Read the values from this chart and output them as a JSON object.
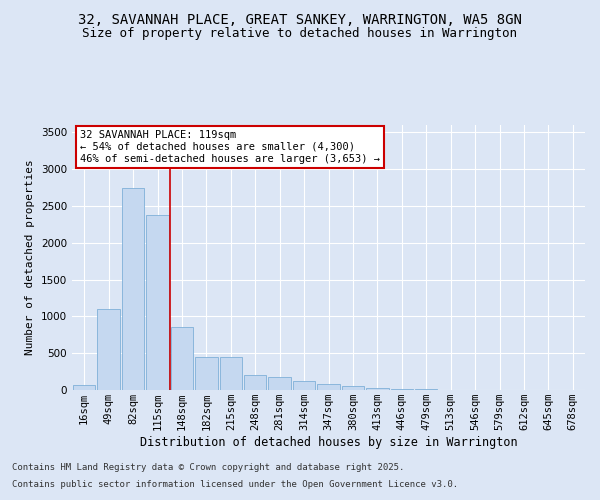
{
  "title1": "32, SAVANNAH PLACE, GREAT SANKEY, WARRINGTON, WA5 8GN",
  "title2": "Size of property relative to detached houses in Warrington",
  "xlabel": "Distribution of detached houses by size in Warrington",
  "ylabel": "Number of detached properties",
  "footer1": "Contains HM Land Registry data © Crown copyright and database right 2025.",
  "footer2": "Contains public sector information licensed under the Open Government Licence v3.0.",
  "categories": [
    "16sqm",
    "49sqm",
    "82sqm",
    "115sqm",
    "148sqm",
    "182sqm",
    "215sqm",
    "248sqm",
    "281sqm",
    "314sqm",
    "347sqm",
    "380sqm",
    "413sqm",
    "446sqm",
    "479sqm",
    "513sqm",
    "546sqm",
    "579sqm",
    "612sqm",
    "645sqm",
    "678sqm"
  ],
  "values": [
    70,
    1100,
    2750,
    2380,
    850,
    450,
    450,
    200,
    175,
    125,
    80,
    55,
    30,
    15,
    8,
    4,
    3,
    2,
    2,
    1,
    1
  ],
  "bar_color": "#c5d8f0",
  "bar_edge_color": "#7fb0d8",
  "vline_x_index": 3.5,
  "vline_color": "#cc0000",
  "annotation_text": "32 SAVANNAH PLACE: 119sqm\n← 54% of detached houses are smaller (4,300)\n46% of semi-detached houses are larger (3,653) →",
  "annotation_box_color": "#ffffff",
  "annotation_box_edge": "#cc0000",
  "ylim": [
    0,
    3600
  ],
  "yticks": [
    0,
    500,
    1000,
    1500,
    2000,
    2500,
    3000,
    3500
  ],
  "background_color": "#dce6f5",
  "plot_bg_color": "#dce6f5",
  "grid_color": "#ffffff",
  "title1_fontsize": 10,
  "title2_fontsize": 9,
  "xlabel_fontsize": 8.5,
  "ylabel_fontsize": 8,
  "tick_fontsize": 7.5,
  "annotation_fontsize": 7.5,
  "footer_fontsize": 6.5
}
